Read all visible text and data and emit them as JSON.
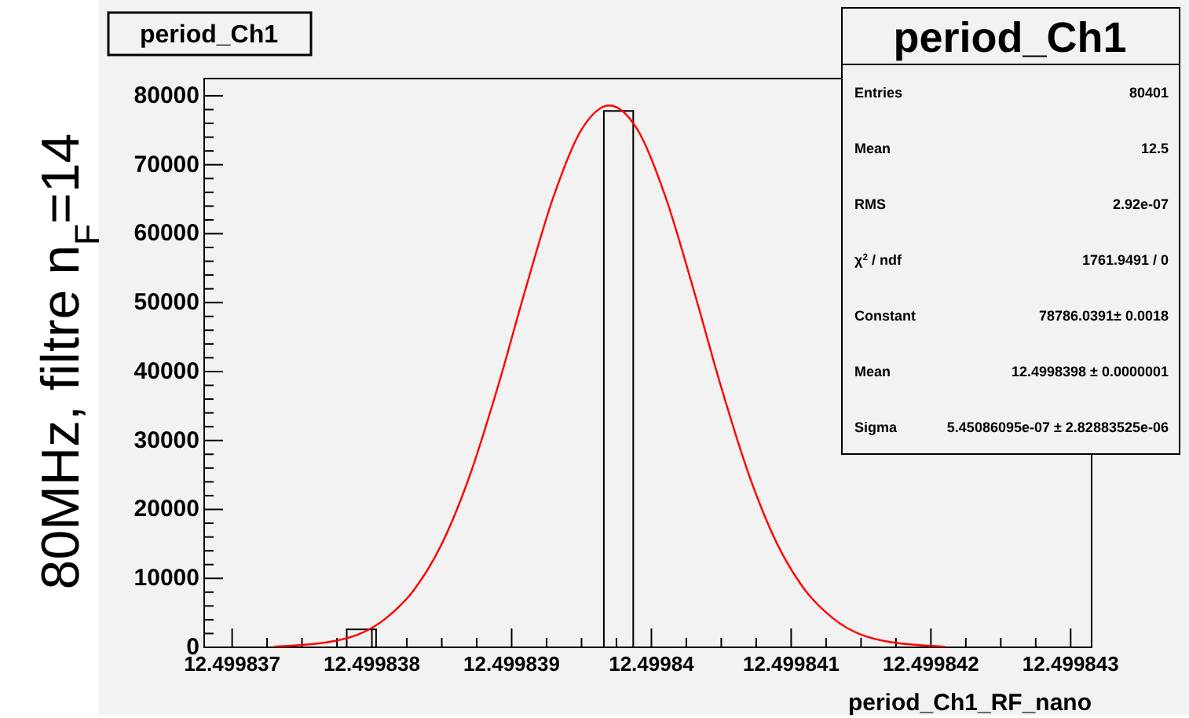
{
  "chart_data": {
    "type": "histogram",
    "title": "period_Ch1",
    "xlabel": "period_Ch1_RF_nano",
    "ylabel": "80MHz, filtre n$_{F}$=14",
    "xlim": [
      12.4998368,
      12.49984315
    ],
    "ylim": [
      0,
      82500
    ],
    "xticks": [
      12.499837,
      12.499838,
      12.499839,
      12.49984,
      12.499841,
      12.499842,
      12.499843
    ],
    "yticks": [
      0,
      10000,
      20000,
      30000,
      40000,
      50000,
      60000,
      70000,
      80000
    ],
    "grid": false,
    "series": [
      {
        "color": "#000000",
        "bins": [
          12.49983782,
          12.49983803,
          12.49983966,
          12.49983987
        ],
        "values": [
          2600,
          0,
          77800
        ]
      },
      {
        "type": "line",
        "color": "#ff0000",
        "x": [
          12.4998373,
          12.4998377,
          12.4998381,
          12.4998383,
          12.4998385,
          12.4998387,
          12.4998389,
          12.4998391,
          12.4998393,
          12.4998395,
          12.4998397,
          12.4998399,
          12.4998401,
          12.4998403,
          12.4998405,
          12.4998407,
          12.4998409,
          12.4998411,
          12.4998413,
          12.4998417,
          12.4998421
        ],
        "values": [
          100,
          800,
          4200,
          8300,
          15000,
          24900,
          37700,
          52000,
          65400,
          75100,
          78600,
          75100,
          65400,
          52000,
          37700,
          24900,
          15000,
          8300,
          4200,
          800,
          100
        ]
      }
    ],
    "annotations": [
      "period_Ch1",
      "Entries",
      "80401",
      "Mean",
      "12.5",
      "RMS",
      "2.92e-07",
      "χ$^{2}$ / ndf",
      "1761.9491 / 0",
      "Constant",
      "78786.0391± 0.0018",
      "Mean",
      "12.4998398 ± 0.0000001",
      "Sigma",
      "5.45086095e-07 ± 2.82883525e-06"
    ]
  }
}
